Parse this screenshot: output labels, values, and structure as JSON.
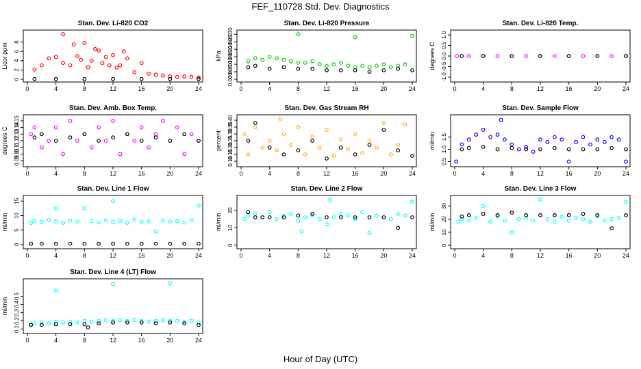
{
  "figure": {
    "title": "FEF_110728  Std. Dev. Diagnostics",
    "xlabel": "Hour of Day (UTC)"
  },
  "colors": {
    "background": "#ffffff",
    "axis": "#000000",
    "overlay": "#000000"
  },
  "chart_data": [
    {
      "type": "scatter",
      "title": "Stan. Dev. Li-820 CO2",
      "ylabel": "Licor ppm",
      "xlim": [
        0,
        24
      ],
      "ylim": [
        0,
        10
      ],
      "xticks": [
        "0",
        "4",
        "8",
        "12",
        "16",
        "20",
        "24"
      ],
      "yticks": [
        "0",
        "2",
        "4",
        "6",
        "8"
      ],
      "color": "#ff0000",
      "series": [
        {
          "x": [
            1,
            2,
            3,
            4,
            5,
            5,
            6,
            6.5,
            7,
            7.5,
            8,
            8.5,
            9,
            9.5,
            10,
            10.5,
            11,
            11.5,
            12,
            12.5,
            13,
            13.5,
            14,
            15,
            16,
            17,
            18,
            19,
            20,
            21,
            22,
            23,
            24
          ],
          "y": [
            2.1,
            3.0,
            4.5,
            4.8,
            9.7,
            3.5,
            3.0,
            7.5,
            5.0,
            4.2,
            7.8,
            2.6,
            4.0,
            6.5,
            6.2,
            3.5,
            4.8,
            3.0,
            5.2,
            2.5,
            3.0,
            6.0,
            4.5,
            1.5,
            3.5,
            1.2,
            1.0,
            0.8,
            0.6,
            0.5,
            0.6,
            0.5,
            0.4
          ]
        },
        {
          "x": [
            1,
            4,
            8,
            12,
            16,
            20,
            24
          ],
          "y": [
            0.05,
            0.05,
            0.05,
            0.05,
            0.05,
            0.05,
            0.05
          ]
        }
      ]
    },
    {
      "type": "scatter",
      "title": "Stan. Dev. Li-820 Pressure",
      "ylabel": "kPa",
      "xlim": [
        0,
        24
      ],
      "ylim": [
        0,
        0.031
      ],
      "xticks": [
        "0",
        "4",
        "8",
        "12",
        "16",
        "20",
        "24"
      ],
      "yticks": [
        "0.000",
        "0.005",
        "0.010",
        "0.015",
        "0.020",
        "0.025",
        "0.030"
      ],
      "color": "#00cc00",
      "series": [
        {
          "x": [
            1,
            2,
            3,
            4,
            5,
            6,
            7,
            8,
            8,
            9,
            10,
            11,
            12,
            13,
            14,
            15,
            16,
            16,
            17,
            18,
            19,
            20,
            21,
            22,
            23,
            24
          ],
          "y": [
            0.012,
            0.014,
            0.013,
            0.015,
            0.014,
            0.013,
            0.012,
            0.011,
            0.03,
            0.011,
            0.012,
            0.01,
            0.009,
            0.01,
            0.011,
            0.009,
            0.008,
            0.028,
            0.009,
            0.008,
            0.009,
            0.01,
            0.008,
            0.009,
            0.01,
            0.029
          ]
        },
        {
          "x": [
            1,
            2,
            4,
            6,
            8,
            10,
            12,
            14,
            16,
            18,
            20,
            22,
            24
          ],
          "y": [
            0.008,
            0.009,
            0.007,
            0.008,
            0.007,
            0.007,
            0.006,
            0.006,
            0.006,
            0.005,
            0.006,
            0.007,
            0.006
          ]
        }
      ]
    },
    {
      "type": "scatter",
      "title": "Stan. Dev. Li-820 Temp.",
      "ylabel": "degrees C",
      "xlim": [
        0,
        24
      ],
      "ylim": [
        -1.1,
        1.1
      ],
      "xticks": [
        "0",
        "4",
        "8",
        "12",
        "16",
        "20",
        "24"
      ],
      "yticks": [
        "-1.0",
        "-0.5",
        "0.0",
        "0.5",
        "1.0"
      ],
      "color": "#ff00ff",
      "series": [
        {
          "x": [
            0.3,
            2,
            4,
            6,
            8,
            10,
            12,
            14,
            16,
            18,
            20,
            22,
            24
          ],
          "y": [
            0,
            0,
            0,
            0,
            0,
            0,
            0,
            0,
            0,
            0,
            0,
            0,
            0
          ]
        },
        {
          "x": [
            1,
            4,
            8,
            12,
            16,
            20,
            24
          ],
          "y": [
            0,
            0,
            0,
            0,
            0,
            0,
            0
          ]
        }
      ]
    },
    {
      "type": "scatter",
      "title": "Stan. Dev. Amb. Box Temp.",
      "ylabel": "degrees C",
      "xlim": [
        0,
        24
      ],
      "ylim": [
        0.085,
        0.155
      ],
      "xticks": [
        "0",
        "4",
        "8",
        "12",
        "16",
        "20",
        "24"
      ],
      "yticks": [
        "0.09",
        "0.10",
        "0.11",
        "0.12",
        "0.13",
        "0.14",
        "0.15"
      ],
      "color": "#ff00ff",
      "series": [
        {
          "x": [
            0.5,
            1,
            2,
            3,
            4,
            5,
            6,
            7,
            8,
            9,
            10,
            11,
            12,
            13,
            14,
            15,
            16,
            17,
            18,
            19,
            20,
            21,
            22,
            23,
            24
          ],
          "y": [
            0.13,
            0.14,
            0.11,
            0.12,
            0.14,
            0.1,
            0.15,
            0.12,
            0.13,
            0.11,
            0.14,
            0.12,
            0.15,
            0.1,
            0.13,
            0.12,
            0.14,
            0.11,
            0.13,
            0.15,
            0.12,
            0.14,
            0.1,
            0.13,
            0.12
          ]
        },
        {
          "x": [
            1,
            2,
            4,
            6,
            8,
            10,
            12,
            14,
            16,
            18,
            20,
            22,
            24
          ],
          "y": [
            0.125,
            0.13,
            0.12,
            0.125,
            0.13,
            0.12,
            0.125,
            0.13,
            0.12,
            0.125,
            0.12,
            0.13,
            0.12
          ]
        }
      ]
    },
    {
      "type": "scatter",
      "title": "Stan. Dev. Gas Stream RH",
      "ylabel": "percent",
      "xlim": [
        0,
        24
      ],
      "ylim": [
        0.08,
        0.42
      ],
      "xticks": [
        "0",
        "4",
        "8",
        "12",
        "16",
        "20",
        "24"
      ],
      "yticks": [
        "0.10",
        "0.15",
        "0.20",
        "0.25",
        "0.30",
        "0.35",
        "0.40"
      ],
      "color": "#ffaa00",
      "series": [
        {
          "x": [
            0.5,
            1,
            2,
            3,
            4,
            5,
            5.5,
            6,
            7,
            8,
            9,
            10,
            11,
            12,
            13,
            14,
            15,
            16,
            17,
            18,
            19,
            20,
            21,
            22,
            23,
            24
          ],
          "y": [
            0.3,
            0.15,
            0.35,
            0.2,
            0.25,
            0.18,
            0.41,
            0.3,
            0.22,
            0.35,
            0.15,
            0.28,
            0.2,
            0.33,
            0.14,
            0.26,
            0.19,
            0.3,
            0.16,
            0.25,
            0.2,
            0.38,
            0.15,
            0.22,
            0.37,
            0.14
          ]
        },
        {
          "x": [
            1,
            2,
            4,
            6,
            8,
            10,
            12,
            14,
            16,
            18,
            20,
            22,
            24
          ],
          "y": [
            0.25,
            0.38,
            0.2,
            0.15,
            0.18,
            0.25,
            0.12,
            0.2,
            0.15,
            0.22,
            0.33,
            0.18,
            0.14
          ]
        }
      ]
    },
    {
      "type": "scatter",
      "title": "Stan. Dev. Sample Flow",
      "ylabel": "ml/min",
      "xlim": [
        0,
        24
      ],
      "ylim": [
        0.4,
        2.3
      ],
      "xticks": [
        "0",
        "4",
        "8",
        "12",
        "16",
        "20",
        "24"
      ],
      "yticks": [
        "0.5",
        "1.0",
        "1.5"
      ],
      "color": "#0000ff",
      "series": [
        {
          "x": [
            0.2,
            1,
            2,
            3,
            4,
            5,
            6,
            6.5,
            7,
            8,
            9,
            10,
            11,
            12,
            13,
            14,
            15,
            16,
            17,
            18,
            19,
            20,
            21,
            22,
            23,
            24
          ],
          "y": [
            0.5,
            1.2,
            1.4,
            1.6,
            1.8,
            1.5,
            1.6,
            2.2,
            1.4,
            1.2,
            1.0,
            1.1,
            0.9,
            1.4,
            1.3,
            1.5,
            1.4,
            0.5,
            1.3,
            1.5,
            1.2,
            1.4,
            1.3,
            1.5,
            1.4,
            0.5
          ]
        },
        {
          "x": [
            1,
            2,
            4,
            6,
            8,
            10,
            12,
            14,
            16,
            18,
            20,
            22,
            24
          ],
          "y": [
            1.0,
            1.05,
            1.1,
            1.0,
            1.05,
            1.0,
            1.0,
            1.05,
            1.0,
            1.0,
            1.0,
            1.05,
            1.0
          ]
        }
      ]
    },
    {
      "type": "scatter",
      "title": "Stan. Dev. Line 1 Flow",
      "ylabel": "ml/min",
      "xlim": [
        0,
        24
      ],
      "ylim": [
        -0.5,
        16
      ],
      "xticks": [
        "0",
        "4",
        "8",
        "12",
        "16",
        "20",
        "24"
      ],
      "yticks": [
        "0",
        "5",
        "10",
        "15"
      ],
      "color": "#00ffff",
      "series": [
        {
          "x": [
            0.5,
            1,
            2,
            3,
            4,
            4,
            5,
            6,
            7,
            8,
            9,
            10,
            11,
            12,
            12,
            13,
            14,
            15,
            16,
            17,
            18,
            19,
            20,
            21,
            22,
            23,
            24
          ],
          "y": [
            7.5,
            8.2,
            7.8,
            8.5,
            8.0,
            12.5,
            7.5,
            8.3,
            7.9,
            12.5,
            8.1,
            7.6,
            8.4,
            7.8,
            15.0,
            8.2,
            7.5,
            8.6,
            7.8,
            8.0,
            4.5,
            8.3,
            7.9,
            8.1,
            7.6,
            8.4,
            13.5
          ]
        },
        {
          "x": [
            0.5,
            2,
            4,
            6,
            8,
            10,
            12,
            14,
            16,
            18,
            20,
            22,
            24
          ],
          "y": [
            0.3,
            0.3,
            0.3,
            0.3,
            0.3,
            0.3,
            0.3,
            0.3,
            0.3,
            0.3,
            0.3,
            0.3,
            0.3
          ]
        }
      ]
    },
    {
      "type": "scatter",
      "title": "Stan. Dev. Line 2 Flow",
      "ylabel": "ml/min",
      "xlim": [
        0,
        24
      ],
      "ylim": [
        -0.5,
        27
      ],
      "xticks": [
        "0",
        "4",
        "8",
        "12",
        "16",
        "20",
        "24"
      ],
      "yticks": [
        "0",
        "10",
        "20"
      ],
      "color": "#00ffff",
      "series": [
        {
          "x": [
            0.5,
            1,
            2,
            3,
            4,
            5,
            6,
            7,
            8,
            8.5,
            9,
            10,
            11,
            12,
            12.5,
            13,
            14,
            15,
            16,
            17,
            18,
            19,
            20,
            21,
            22,
            23,
            24
          ],
          "y": [
            15,
            17,
            18,
            16,
            19,
            15,
            17,
            18,
            14,
            8,
            16,
            17,
            15,
            12,
            26,
            16,
            18,
            17,
            15,
            19,
            7,
            17,
            16,
            15,
            18,
            17,
            25
          ]
        },
        {
          "x": [
            1,
            2,
            3,
            4,
            6,
            8,
            10,
            12,
            14,
            16,
            18,
            20,
            22,
            24
          ],
          "y": [
            19,
            16,
            16,
            16,
            16,
            17,
            18,
            16,
            16,
            16,
            16,
            16,
            10,
            16
          ]
        }
      ]
    },
    {
      "type": "scatter",
      "title": "Stan. Dev. Line 3 Flow",
      "ylabel": "ml/min",
      "xlim": [
        0,
        24
      ],
      "ylim": [
        -0.5,
        36
      ],
      "xticks": [
        "0",
        "4",
        "8",
        "12",
        "16",
        "20",
        "24"
      ],
      "yticks": [
        "0",
        "10",
        "20",
        "30"
      ],
      "color": "#00ffff",
      "series": [
        {
          "x": [
            0.5,
            1,
            2,
            3,
            4,
            5,
            6,
            7,
            8,
            9,
            10,
            11,
            12,
            13,
            14,
            15,
            16,
            17,
            18,
            19,
            20,
            21,
            22,
            23,
            24
          ],
          "y": [
            18,
            20,
            19,
            21,
            30,
            18,
            22,
            19,
            10,
            20,
            21,
            19,
            35,
            20,
            18,
            22,
            19,
            21,
            20,
            18,
            22,
            19,
            20,
            21,
            33
          ]
        },
        {
          "x": [
            1,
            2,
            4,
            6,
            8,
            10,
            12,
            14,
            16,
            18,
            20,
            22,
            24
          ],
          "y": [
            22,
            23,
            24,
            23,
            25,
            23,
            23,
            23,
            23,
            24,
            23,
            13,
            23
          ]
        }
      ]
    },
    {
      "type": "scatter",
      "title": "Stan. Dev. Line 4 (LT) Flow",
      "ylabel": "ml/min",
      "xlim": [
        0,
        24
      ],
      "ylim": [
        0.08,
        0.68
      ],
      "xticks": [
        "0",
        "4",
        "8",
        "12",
        "16",
        "20",
        "24"
      ],
      "yticks": [
        "0.1",
        "0.2",
        "0.3",
        "0.4",
        "0.5"
      ],
      "color": "#00ffff",
      "series": [
        {
          "x": [
            0.5,
            1,
            2,
            3,
            4,
            4,
            5,
            6,
            7,
            8,
            9,
            10,
            11,
            12,
            12,
            13,
            14,
            15,
            16,
            17,
            18,
            19,
            20,
            20,
            21,
            22,
            23,
            24
          ],
          "y": [
            0.16,
            0.17,
            0.18,
            0.17,
            0.19,
            0.57,
            0.18,
            0.19,
            0.18,
            0.2,
            0.19,
            0.2,
            0.21,
            0.2,
            0.65,
            0.21,
            0.2,
            0.21,
            0.2,
            0.19,
            0.2,
            0.21,
            0.2,
            0.66,
            0.2,
            0.19,
            0.2,
            0.18
          ]
        },
        {
          "x": [
            0.5,
            2,
            4,
            6,
            8,
            8.5,
            10,
            12,
            14,
            16,
            18,
            20,
            22,
            24
          ],
          "y": [
            0.15,
            0.15,
            0.16,
            0.16,
            0.16,
            0.12,
            0.17,
            0.18,
            0.18,
            0.18,
            0.17,
            0.18,
            0.17,
            0.15
          ]
        }
      ]
    }
  ]
}
